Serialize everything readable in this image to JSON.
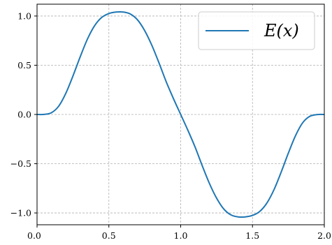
{
  "chart_data": {
    "type": "line",
    "title": "",
    "xlabel": "",
    "ylabel": "",
    "xlim": [
      0.0,
      2.0
    ],
    "ylim": [
      -1.12,
      1.12
    ],
    "grid": true,
    "legend_position": "top-right",
    "x_ticks": [
      {
        "value": 0.0,
        "label": "0.0"
      },
      {
        "value": 0.5,
        "label": "0.5"
      },
      {
        "value": 1.0,
        "label": "1.0"
      },
      {
        "value": 1.5,
        "label": "1.5"
      },
      {
        "value": 2.0,
        "label": "2.0"
      }
    ],
    "y_ticks": [
      {
        "value": 1.0,
        "label": "1.0"
      },
      {
        "value": 0.5,
        "label": "0.5"
      },
      {
        "value": 0.0,
        "label": "0.0"
      },
      {
        "value": -0.5,
        "label": "−0.5"
      },
      {
        "value": -1.0,
        "label": "−1.0"
      }
    ],
    "series": [
      {
        "name": "E(x)",
        "color": "#1f77b4",
        "x": [
          0.0,
          0.05,
          0.1,
          0.15,
          0.2,
          0.25,
          0.3,
          0.35,
          0.4,
          0.45,
          0.5,
          0.55,
          0.6,
          0.65,
          0.7,
          0.75,
          0.8,
          0.85,
          0.9,
          0.95,
          1.0,
          1.05,
          1.1,
          1.15,
          1.2,
          1.25,
          1.3,
          1.35,
          1.4,
          1.45,
          1.5,
          1.55,
          1.6,
          1.65,
          1.7,
          1.75,
          1.8,
          1.85,
          1.9,
          1.95,
          2.0
        ],
        "y": [
          0.0,
          0.001,
          0.018,
          0.083,
          0.214,
          0.391,
          0.584,
          0.763,
          0.9,
          0.985,
          1.025,
          1.04,
          1.04,
          1.02,
          0.96,
          0.85,
          0.7,
          0.52,
          0.33,
          0.16,
          0.0,
          -0.16,
          -0.33,
          -0.52,
          -0.7,
          -0.85,
          -0.96,
          -1.02,
          -1.04,
          -1.04,
          -1.025,
          -0.985,
          -0.9,
          -0.763,
          -0.584,
          -0.391,
          -0.214,
          -0.083,
          -0.018,
          -0.001,
          0.0
        ]
      }
    ]
  }
}
